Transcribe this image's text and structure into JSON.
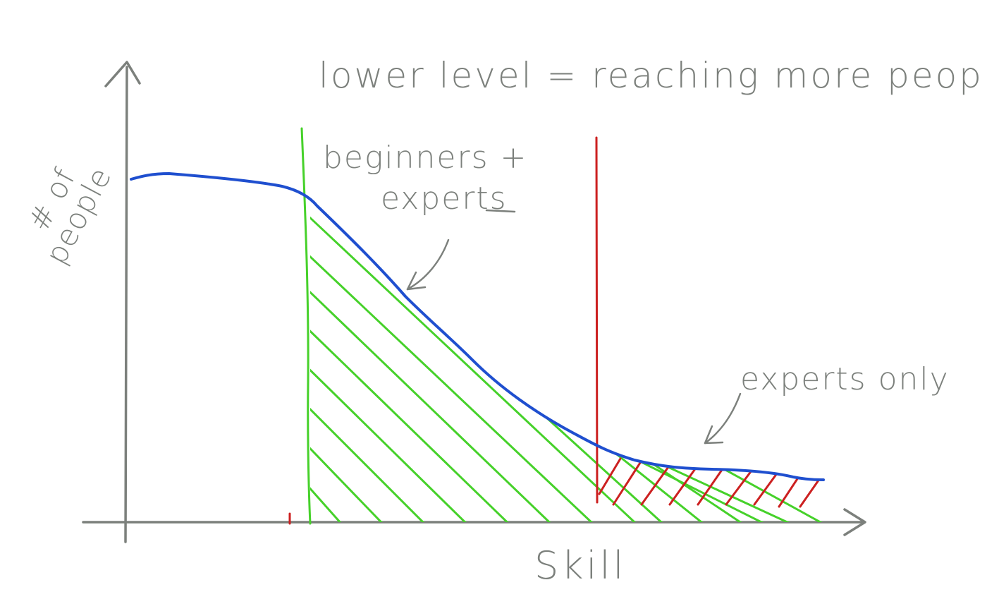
{
  "title": "lower level = reaching more people",
  "x_axis_label": "Skill",
  "y_axis_label_lines": [
    "# of",
    "people"
  ],
  "annotations": {
    "beginners_line1": "beginners +",
    "beginners_line2": "experts",
    "experts_only": "experts only"
  },
  "colors": {
    "curve": "#1f4fcf",
    "beginner_cutoff": "#46d12a",
    "expert_cutoff": "#cc2020",
    "ink": "#7c807c"
  },
  "icons": [
    "arrow-up-icon",
    "arrow-right-icon",
    "curved-arrow-icon"
  ]
}
